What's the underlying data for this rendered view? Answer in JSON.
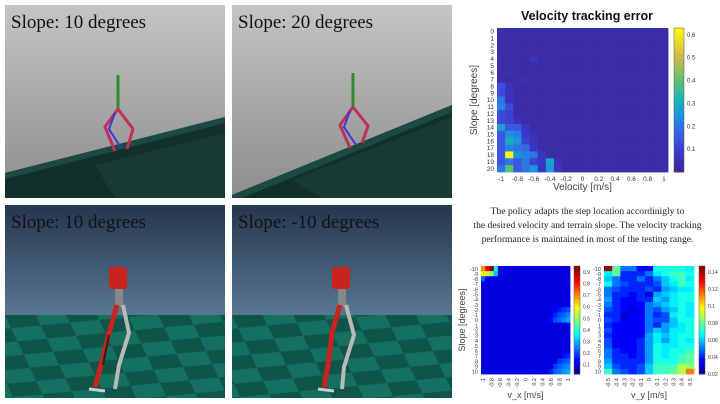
{
  "panels": [
    {
      "title": "Slope: 10 degrees",
      "scene": "flat-terrain-slope-up"
    },
    {
      "title": "Slope: 20 degrees",
      "scene": "flat-terrain-slope-up-steep"
    },
    {
      "title": "Slope: 10 degrees",
      "scene": "checker-floor"
    },
    {
      "title": "Slope: -10 degrees",
      "scene": "checker-floor"
    }
  ],
  "caption": {
    "lines": [
      "The policy adapts the step location accordinigly to",
      "the desired velocity and terrain slope. The velocity tracking",
      "performance is maintained in most of the testing range."
    ]
  },
  "chart_data": [
    {
      "type": "heatmap",
      "title": "Velocity tracking error",
      "xlabel": "Velocity [m/s]",
      "ylabel": "Slope [degrees]",
      "x_tick_labels": [
        "-1",
        "-0.8",
        "-0.6",
        "-0.4",
        "-0.2",
        "0",
        "0.2",
        "0.4",
        "0.6",
        "0.8",
        "1"
      ],
      "y_tick_labels": [
        "0",
        "1",
        "2",
        "3",
        "4",
        "5",
        "6",
        "7",
        "8",
        "9",
        "10",
        "11",
        "12",
        "13",
        "14",
        "15",
        "16",
        "17",
        "18",
        "19",
        "20"
      ],
      "x": [
        -1,
        -0.9,
        -0.8,
        -0.7,
        -0.6,
        -0.5,
        -0.4,
        -0.3,
        -0.2,
        -0.1,
        0,
        0.1,
        0.2,
        0.3,
        0.4,
        0.5,
        0.6,
        0.7,
        0.8,
        0.9,
        1
      ],
      "y": [
        0,
        1,
        2,
        3,
        4,
        5,
        6,
        7,
        8,
        9,
        10,
        11,
        12,
        13,
        14,
        15,
        16,
        17,
        18,
        19,
        20
      ],
      "colormap": "parula",
      "clim": [
        0,
        0.63
      ],
      "colorbar_ticks": [
        "0.1",
        "0.2",
        "0.3",
        "0.4",
        "0.5",
        "0.6"
      ],
      "colorbar_tick_values": [
        0.1,
        0.2,
        0.3,
        0.4,
        0.5,
        0.6
      ],
      "base_value": 0.02,
      "cells": [
        [
          0,
          0,
          0.03
        ],
        [
          1,
          0,
          0.03
        ],
        [
          2,
          1,
          0.03
        ],
        [
          3,
          1,
          0.03
        ],
        [
          4,
          4,
          0.06
        ],
        [
          5,
          1,
          0.03
        ],
        [
          6,
          1,
          0.04
        ],
        [
          7,
          0,
          0.03
        ],
        [
          7,
          3,
          0.04
        ],
        [
          8,
          0,
          0.13
        ],
        [
          8,
          1,
          0.05
        ],
        [
          9,
          0,
          0.12
        ],
        [
          9,
          1,
          0.05
        ],
        [
          10,
          0,
          0.2
        ],
        [
          10,
          1,
          0.05
        ],
        [
          11,
          0,
          0.22
        ],
        [
          11,
          1,
          0.12
        ],
        [
          12,
          0,
          0.12
        ],
        [
          12,
          1,
          0.1
        ],
        [
          13,
          0,
          0.12
        ],
        [
          13,
          1,
          0.1
        ],
        [
          13,
          2,
          0.05
        ],
        [
          14,
          0,
          0.27
        ],
        [
          14,
          1,
          0.15
        ],
        [
          14,
          2,
          0.15
        ],
        [
          14,
          3,
          0.07
        ],
        [
          15,
          0,
          0.15
        ],
        [
          15,
          1,
          0.25
        ],
        [
          15,
          2,
          0.22
        ],
        [
          15,
          3,
          0.08
        ],
        [
          15,
          4,
          0.05
        ],
        [
          16,
          0,
          0.15
        ],
        [
          16,
          1,
          0.3
        ],
        [
          16,
          2,
          0.25
        ],
        [
          16,
          3,
          0.1
        ],
        [
          16,
          4,
          0.05
        ],
        [
          17,
          0,
          0.15
        ],
        [
          17,
          1,
          0.22
        ],
        [
          17,
          2,
          0.2
        ],
        [
          17,
          3,
          0.18
        ],
        [
          17,
          4,
          0.07
        ],
        [
          18,
          0,
          0.15
        ],
        [
          18,
          1,
          0.63
        ],
        [
          18,
          2,
          0.25
        ],
        [
          18,
          3,
          0.22
        ],
        [
          18,
          4,
          0.2
        ],
        [
          18,
          5,
          0.06
        ],
        [
          19,
          0,
          0.15
        ],
        [
          19,
          1,
          0.2
        ],
        [
          19,
          2,
          0.15
        ],
        [
          19,
          3,
          0.2
        ],
        [
          19,
          4,
          0.1
        ],
        [
          19,
          5,
          0.07
        ],
        [
          19,
          6,
          0.28
        ],
        [
          19,
          7,
          0.05
        ],
        [
          20,
          0,
          0.2
        ],
        [
          20,
          1,
          0.4
        ],
        [
          20,
          2,
          0.15
        ],
        [
          20,
          3,
          0.2
        ],
        [
          20,
          4,
          0.25
        ],
        [
          20,
          5,
          0.07
        ],
        [
          20,
          6,
          0.25
        ],
        [
          20,
          7,
          0.06
        ]
      ]
    },
    {
      "type": "heatmap",
      "xlabel": "v_x [m/s]",
      "ylabel": "Slope [degrees]",
      "x_tick_labels": [
        "-1",
        "-0.8",
        "-0.6",
        "-0.4",
        "-0.2",
        "0",
        "0.2",
        "0.4",
        "0.6",
        "0.8",
        "1"
      ],
      "y_tick_labels": [
        "-10",
        "-9",
        "-8",
        "-7",
        "-6",
        "-5",
        "-4",
        "-3",
        "-2",
        "-1",
        "0",
        "1",
        "2",
        "3",
        "4",
        "5",
        "6",
        "7",
        "8",
        "9",
        "10"
      ],
      "colormap": "jet",
      "clim": [
        0.02,
        0.95
      ],
      "colorbar_ticks": [
        "0.1",
        "0.2",
        "0.3",
        "0.4",
        "0.5",
        "0.6",
        "0.7",
        "0.8",
        "0.9"
      ],
      "colorbar_tick_values": [
        0.1,
        0.2,
        0.3,
        0.4,
        0.5,
        0.6,
        0.7,
        0.8,
        0.9
      ],
      "base_value": 0.1,
      "cells": [
        [
          0,
          0,
          0.7
        ],
        [
          0,
          1,
          0.85
        ],
        [
          0,
          2,
          0.95
        ],
        [
          0,
          3,
          0.35
        ],
        [
          1,
          0,
          0.6
        ],
        [
          1,
          1,
          0.55
        ],
        [
          1,
          2,
          0.5
        ],
        [
          1,
          3,
          0.3
        ],
        [
          2,
          0,
          0.22
        ],
        [
          2,
          1,
          0.13
        ],
        [
          7,
          17,
          0.13
        ],
        [
          8,
          18,
          0.15
        ],
        [
          8,
          19,
          0.18
        ],
        [
          8,
          20,
          0.2
        ],
        [
          9,
          17,
          0.16
        ],
        [
          9,
          18,
          0.2
        ],
        [
          9,
          19,
          0.22
        ],
        [
          9,
          20,
          0.25
        ],
        [
          10,
          16,
          0.14
        ],
        [
          10,
          17,
          0.2
        ],
        [
          10,
          18,
          0.22
        ],
        [
          10,
          19,
          0.25
        ],
        [
          10,
          20,
          0.28
        ]
      ],
      "row_offset_note": "rows indexed from slope -10 at top; overrides for slopes 7-10 are rows 17-20",
      "cells_bottom": [
        [
          17,
          19,
          0.14
        ],
        [
          17,
          20,
          0.16
        ],
        [
          18,
          18,
          0.18
        ],
        [
          18,
          19,
          0.2
        ],
        [
          18,
          20,
          0.22
        ],
        [
          19,
          17,
          0.18
        ],
        [
          19,
          18,
          0.22
        ],
        [
          19,
          19,
          0.24
        ],
        [
          19,
          20,
          0.26
        ],
        [
          20,
          16,
          0.16
        ],
        [
          20,
          17,
          0.22
        ],
        [
          20,
          18,
          0.24
        ],
        [
          20,
          19,
          0.27
        ],
        [
          20,
          20,
          0.28
        ]
      ]
    },
    {
      "type": "heatmap",
      "xlabel": "v_y [m/s]",
      "x_tick_labels": [
        "-0.5",
        "-0.4",
        "-0.3",
        "-0.2",
        "-0.1",
        "0",
        "0.1",
        "0.2",
        "0.3",
        "0.4",
        "0.5"
      ],
      "y_tick_labels": [
        "-10",
        "-9",
        "-8",
        "-7",
        "-6",
        "-5",
        "-4",
        "-3",
        "-2",
        "-1",
        "0",
        "1",
        "2",
        "3",
        "4",
        "5",
        "6",
        "7",
        "8",
        "9",
        "10"
      ],
      "colormap": "jet",
      "clim": [
        0.02,
        0.147
      ],
      "colorbar_ticks": [
        "0.02",
        "0.04",
        "0.06",
        "0.08",
        "0.1",
        "0.12",
        "0.14"
      ],
      "colorbar_tick_values": [
        0.02,
        0.04,
        0.06,
        0.08,
        0.1,
        0.12,
        0.14
      ],
      "rows": [
        [
          0.145,
          0.08,
          0.05,
          0.05,
          0.035,
          0.035,
          0.07,
          0.07,
          0.07,
          0.07,
          0.065
        ],
        [
          0.065,
          0.08,
          0.04,
          0.04,
          0.04,
          0.05,
          0.065,
          0.07,
          0.075,
          0.075,
          0.07
        ],
        [
          0.06,
          0.05,
          0.04,
          0.04,
          0.05,
          0.04,
          0.05,
          0.06,
          0.07,
          0.075,
          0.065
        ],
        [
          0.07,
          0.05,
          0.045,
          0.04,
          0.04,
          0.04,
          0.045,
          0.06,
          0.065,
          0.075,
          0.07
        ],
        [
          0.05,
          0.045,
          0.04,
          0.04,
          0.04,
          0.045,
          0.04,
          0.055,
          0.06,
          0.065,
          0.065
        ],
        [
          0.05,
          0.04,
          0.04,
          0.035,
          0.04,
          0.03,
          0.055,
          0.06,
          0.065,
          0.07,
          0.07
        ],
        [
          0.055,
          0.04,
          0.035,
          0.035,
          0.04,
          0.04,
          0.06,
          0.055,
          0.065,
          0.07,
          0.07
        ],
        [
          0.05,
          0.04,
          0.035,
          0.035,
          0.035,
          0.05,
          0.055,
          0.06,
          0.065,
          0.07,
          0.065
        ],
        [
          0.045,
          0.04,
          0.035,
          0.03,
          0.035,
          0.05,
          0.045,
          0.055,
          0.06,
          0.07,
          0.065
        ],
        [
          0.04,
          0.04,
          0.03,
          0.035,
          0.035,
          0.05,
          0.04,
          0.045,
          0.065,
          0.07,
          0.065
        ],
        [
          0.045,
          0.04,
          0.03,
          0.035,
          0.035,
          0.05,
          0.045,
          0.045,
          0.06,
          0.07,
          0.07
        ],
        [
          0.04,
          0.035,
          0.035,
          0.035,
          0.035,
          0.05,
          0.04,
          0.055,
          0.06,
          0.065,
          0.07
        ],
        [
          0.045,
          0.035,
          0.035,
          0.035,
          0.035,
          0.05,
          0.06,
          0.055,
          0.065,
          0.065,
          0.07
        ],
        [
          0.04,
          0.035,
          0.035,
          0.035,
          0.035,
          0.055,
          0.065,
          0.06,
          0.065,
          0.07,
          0.07
        ],
        [
          0.045,
          0.035,
          0.035,
          0.035,
          0.04,
          0.055,
          0.065,
          0.055,
          0.065,
          0.07,
          0.065
        ],
        [
          0.045,
          0.035,
          0.035,
          0.035,
          0.04,
          0.055,
          0.07,
          0.065,
          0.065,
          0.07,
          0.07
        ],
        [
          0.05,
          0.04,
          0.035,
          0.035,
          0.04,
          0.055,
          0.07,
          0.065,
          0.07,
          0.07,
          0.075
        ],
        [
          0.05,
          0.04,
          0.04,
          0.035,
          0.04,
          0.055,
          0.07,
          0.065,
          0.07,
          0.075,
          0.08
        ],
        [
          0.055,
          0.04,
          0.04,
          0.04,
          0.04,
          0.055,
          0.07,
          0.07,
          0.07,
          0.075,
          0.08
        ],
        [
          0.06,
          0.045,
          0.04,
          0.04,
          0.045,
          0.06,
          0.075,
          0.075,
          0.075,
          0.09,
          0.085
        ],
        [
          0.075,
          0.05,
          0.045,
          0.04,
          0.045,
          0.06,
          0.075,
          0.075,
          0.08,
          0.09,
          0.115
        ]
      ]
    }
  ]
}
